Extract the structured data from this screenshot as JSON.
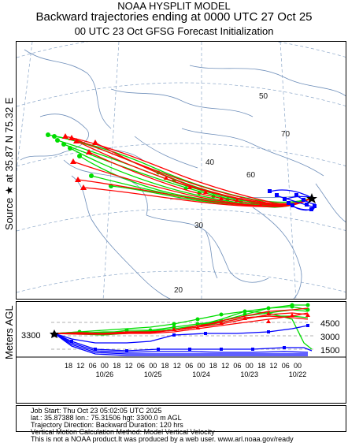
{
  "header": {
    "line1": "NOAA HYSPLIT MODEL",
    "line2": "Backward trajectories ending at 0000 UTC 27 Oct 25",
    "line3": "00 UTC 23 Oct    GFSG  Forecast Initialization"
  },
  "side_labels": {
    "source": "Source ★ at   35.87 N   75.32 E",
    "meters": "Meters AGL"
  },
  "map": {
    "latitude_labels": [
      "50",
      "40",
      "30",
      "20"
    ],
    "longitude_labels": [
      "70",
      "60"
    ],
    "trajectory_colors": {
      "red": "#ff0000",
      "green": "#00dd00",
      "blue": "#0000ff"
    }
  },
  "chart_data": {
    "type": "line",
    "ylabel": "Meters AGL",
    "source_height": "3300",
    "right_ticks": [
      "4500",
      "3000",
      "1500"
    ],
    "hour_ticks": [
      "18",
      "12",
      "06",
      "00",
      "18",
      "12",
      "06",
      "00",
      "18",
      "12",
      "06",
      "00",
      "18",
      "12",
      "06",
      "00",
      "18",
      "12",
      "06",
      "00"
    ],
    "date_ticks": [
      "10/26",
      "10/25",
      "10/24",
      "10/23",
      "10/22"
    ]
  },
  "info": {
    "line1": "Job Start: Thu Oct 23 05:02:05 UTC 2025",
    "line2": "lat.: 35.87388   lon.: 75.31506   hgt: 3300.0 m AGL",
    "line3": "Trajectory Direction: Backward        Duration: 120 hrs",
    "line4": "Vertical Motion Calculation Method: Model Vertical Velocity",
    "line5": "This is not a NOAA product.It was produced by a web user. www.arl.noaa.gov/ready"
  }
}
